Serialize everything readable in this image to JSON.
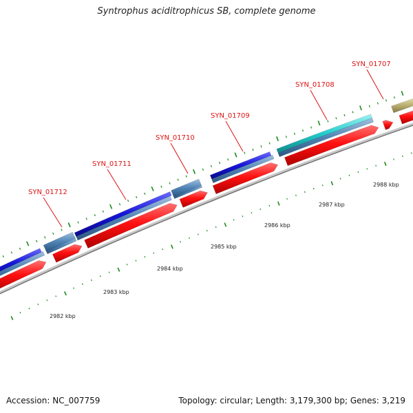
{
  "title": "Syntrophus aciditrophicus SB, complete genome",
  "footer": {
    "accession": "Accession: NC_007759",
    "stats": "Topology: circular; Length: 3,179,300 bp; Genes: 3,219"
  },
  "colors": {
    "cds_forward": "#ff1010",
    "gene_blue": "#1515d8",
    "gene_steelblue": "#4f84b6",
    "gene_cyan": "#22cccc",
    "gene_olive": "#b8ad6e",
    "backbone": "#999999",
    "tick": "#1a8a1a",
    "label": "#dd1111"
  },
  "gene_labels": [
    "SYN_01712",
    "SYN_01711",
    "SYN_01710",
    "SYN_01709",
    "SYN_01708",
    "SYN_01707"
  ],
  "scale_labels": [
    "2982 kbp",
    "2983 kbp",
    "2984 kbp",
    "2985 kbp",
    "2986 kbp",
    "2987 kbp",
    "2988 kbp"
  ]
}
